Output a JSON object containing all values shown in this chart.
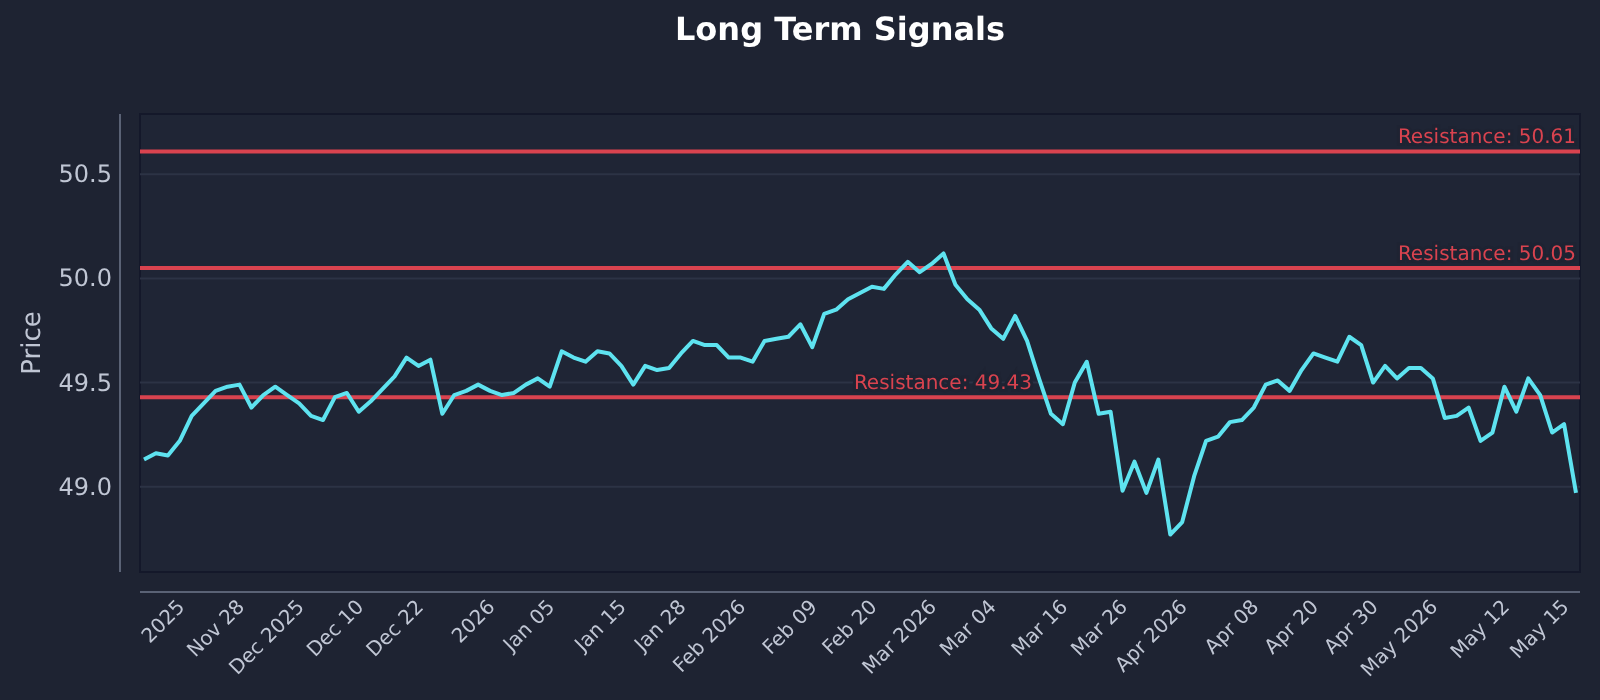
{
  "chart_data": {
    "type": "line",
    "title": "Long Term Signals",
    "ylabel": "Price",
    "categories": [
      null,
      null,
      null,
      "2025",
      null,
      null,
      null,
      null,
      "Nov 28",
      null,
      null,
      null,
      null,
      "Dec 2025",
      null,
      null,
      null,
      null,
      "Dec 10",
      null,
      null,
      null,
      null,
      "Dec 22",
      null,
      null,
      null,
      null,
      null,
      "2026",
      null,
      null,
      null,
      null,
      "Jan 05",
      null,
      null,
      null,
      null,
      null,
      "Jan 15",
      null,
      null,
      null,
      null,
      "Jan 28",
      null,
      null,
      null,
      null,
      "Feb 2026",
      null,
      null,
      null,
      null,
      null,
      "Feb 09",
      null,
      null,
      null,
      null,
      "Feb 20",
      null,
      null,
      null,
      null,
      "Mar 2026",
      null,
      null,
      null,
      null,
      "Mar 04",
      null,
      null,
      null,
      null,
      null,
      "Mar 16",
      null,
      null,
      null,
      null,
      "Mar 26",
      null,
      null,
      null,
      null,
      "Apr 2026",
      null,
      null,
      null,
      null,
      null,
      "Apr 08",
      null,
      null,
      null,
      null,
      "Apr 20",
      null,
      null,
      null,
      null,
      "Apr 30",
      null,
      null,
      null,
      null,
      "May 2026",
      null,
      null,
      null,
      null,
      null,
      "May 12",
      null,
      null,
      null,
      null,
      "May 15",
      null
    ],
    "series": [
      {
        "color": "#5ee3f0",
        "values": [
          49.13,
          49.16,
          49.15,
          49.22,
          49.34,
          49.4,
          49.46,
          49.48,
          49.49,
          49.38,
          49.44,
          49.48,
          49.44,
          49.4,
          49.34,
          49.32,
          49.43,
          49.45,
          49.36,
          49.41,
          49.47,
          49.53,
          49.62,
          49.58,
          49.61,
          49.35,
          49.44,
          49.46,
          49.49,
          49.46,
          49.44,
          49.45,
          49.49,
          49.52,
          49.48,
          49.65,
          49.62,
          49.6,
          49.65,
          49.64,
          49.58,
          49.49,
          49.58,
          49.56,
          49.57,
          49.64,
          49.7,
          49.68,
          49.68,
          49.62,
          49.62,
          49.6,
          49.7,
          49.71,
          49.72,
          49.78,
          49.67,
          49.83,
          49.85,
          49.9,
          49.93,
          49.96,
          49.95,
          50.02,
          50.08,
          50.03,
          50.07,
          50.12,
          49.97,
          49.9,
          49.85,
          49.76,
          49.71,
          49.82,
          49.7,
          49.52,
          49.35,
          49.3,
          49.5,
          49.6,
          49.35,
          49.36,
          48.98,
          49.12,
          48.97,
          49.13,
          48.77,
          48.83,
          49.05,
          49.22,
          49.24,
          49.31,
          49.32,
          49.38,
          49.49,
          49.51,
          49.46,
          49.56,
          49.64,
          49.62,
          49.6,
          49.72,
          49.68,
          49.5,
          49.58,
          49.52,
          49.57,
          49.57,
          49.52,
          49.33,
          49.34,
          49.38,
          49.22,
          49.26,
          49.48,
          49.36,
          49.52,
          49.44,
          49.26,
          49.3,
          48.97
        ]
      }
    ],
    "ylim": [
      48.59,
      50.79
    ],
    "yticks": [
      {
        "value": 49,
        "label": "49.0"
      },
      {
        "value": 49.5,
        "label": "49.5"
      },
      {
        "value": 50,
        "label": "50.0"
      },
      {
        "value": 50.5,
        "label": "50.5"
      }
    ],
    "grid": "y",
    "line_style": "solid",
    "ref_lines": [
      {
        "axis": "y",
        "value": 50.61,
        "label": "Resistance: 50.61",
        "color": "#d9434f"
      },
      {
        "axis": "y",
        "value": 50.05,
        "label": "Resistance: 50.05",
        "color": "#d9434f"
      },
      {
        "axis": "y",
        "value": 49.43,
        "label": "Resistance: 49.43",
        "color": "#d9434f"
      }
    ]
  }
}
